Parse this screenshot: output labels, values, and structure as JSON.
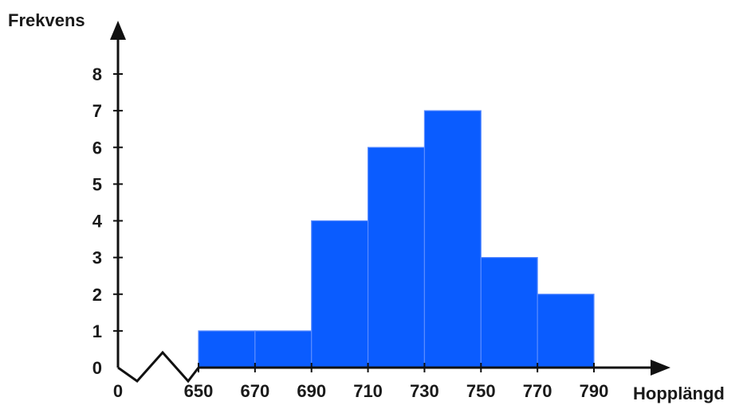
{
  "chart_data": {
    "type": "bar",
    "ylabel": "Frekvens",
    "xlabel": "Hopplängd",
    "x_origin_label": "0",
    "bins": [
      {
        "from": 650,
        "to": 670,
        "value": 1
      },
      {
        "from": 670,
        "to": 690,
        "value": 1
      },
      {
        "from": 690,
        "to": 710,
        "value": 4
      },
      {
        "from": 710,
        "to": 730,
        "value": 6
      },
      {
        "from": 730,
        "to": 750,
        "value": 7
      },
      {
        "from": 750,
        "to": 770,
        "value": 3
      },
      {
        "from": 770,
        "to": 790,
        "value": 2
      }
    ],
    "x_ticks": [
      "650",
      "670",
      "690",
      "710",
      "730",
      "750",
      "770",
      "790"
    ],
    "y_ticks": [
      "0",
      "1",
      "2",
      "3",
      "4",
      "5",
      "6",
      "7",
      "8"
    ],
    "ylim": [
      0,
      8
    ],
    "xlim": [
      650,
      790
    ],
    "axis_break": true,
    "grid": false,
    "legend": "none",
    "colors": {
      "bar": "#0a5cff",
      "bar_edge": "#5a8cff",
      "axis": "#111111"
    }
  }
}
